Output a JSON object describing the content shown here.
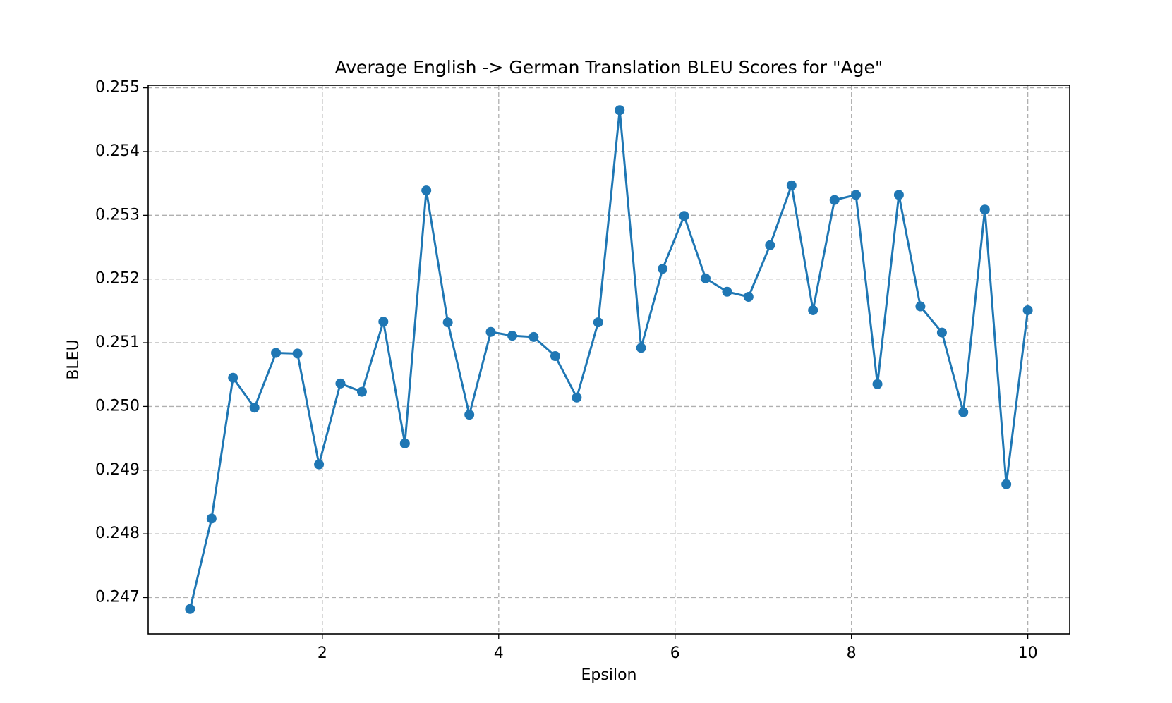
{
  "chart_data": {
    "type": "line",
    "title": "Average English -> German Translation BLEU Scores for \"Age\"",
    "x_label": "Epsilon",
    "y_label": "BLEU",
    "x": [
      0.5,
      0.744,
      0.987,
      1.231,
      1.474,
      1.718,
      1.962,
      2.205,
      2.449,
      2.692,
      2.936,
      3.179,
      3.423,
      3.667,
      3.91,
      4.154,
      4.397,
      4.641,
      4.885,
      5.128,
      5.372,
      5.615,
      5.859,
      6.103,
      6.346,
      6.59,
      6.833,
      7.077,
      7.321,
      7.564,
      7.808,
      8.051,
      8.295,
      8.538,
      8.782,
      9.026,
      9.269,
      9.513,
      9.756,
      10
    ],
    "series": [
      {
        "name": "BLEU",
        "color": "#1f77b4",
        "values": [
          0.24682,
          0.24824,
          0.25045,
          0.24998,
          0.25084,
          0.25083,
          0.24909,
          0.25036,
          0.25023,
          0.25133,
          0.24942,
          0.25339,
          0.25132,
          0.24987,
          0.25117,
          0.25111,
          0.25109,
          0.25079,
          0.25014,
          0.25132,
          0.25465,
          0.25092,
          0.25216,
          0.25299,
          0.25201,
          0.2518,
          0.25172,
          0.25253,
          0.25347,
          0.25151,
          0.25324,
          0.25332,
          0.25035,
          0.25332,
          0.25157,
          0.25116,
          0.24991,
          0.25309,
          0.24878,
          0.25151
        ]
      }
    ],
    "xlim": [
      0.025,
      10.475
    ],
    "ylim": [
      0.24643,
      0.25504
    ],
    "xticks": [
      2,
      4,
      6,
      8,
      10
    ],
    "yticks": [
      0.247,
      0.248,
      0.249,
      {
        "value": 0.25,
        "label": "0.250"
      },
      0.251,
      0.252,
      0.253,
      0.254,
      0.255
    ],
    "grid": true
  }
}
